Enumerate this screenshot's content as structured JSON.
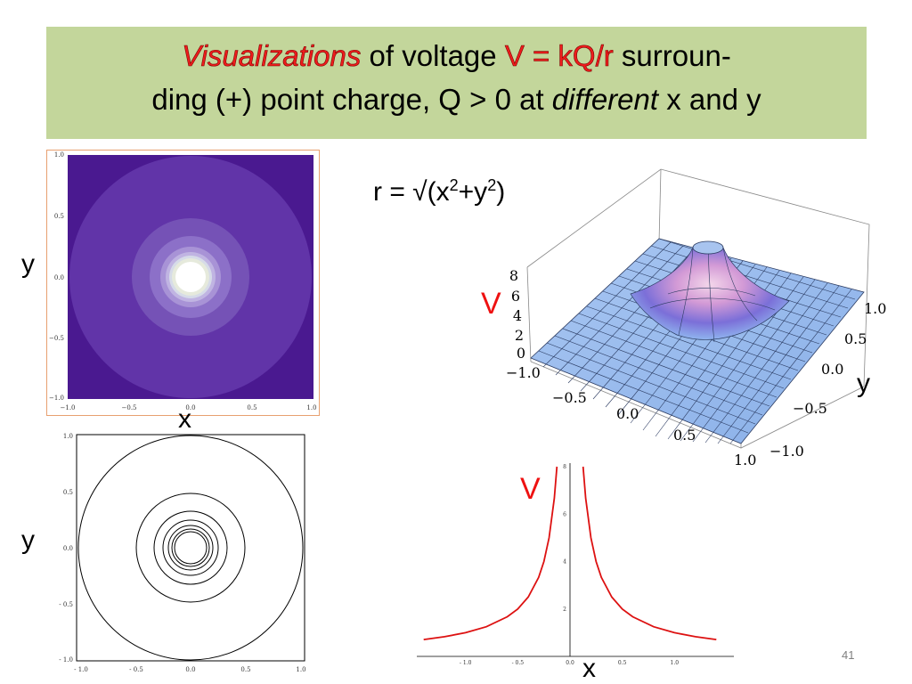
{
  "title": {
    "line1_red_italic": "Visualizations",
    "line1_text_a": " of voltage ",
    "line1_red": "V = kQ/r",
    "line1_text_b": " surroun-",
    "line2_text_a": "ding (+) point charge, Q > 0 at ",
    "line2_italic": "different",
    "line2_text_b": " x and y"
  },
  "formula": {
    "prefix": "r = √(x",
    "exp1": "2",
    "mid": "+y",
    "exp2": "2",
    "suffix": ")"
  },
  "labels": {
    "y_top": "y",
    "x_top": "x",
    "y_bottom": "y",
    "v_3d": "V",
    "y_3d": "y",
    "v_bottom": "V",
    "x_bottom": "x"
  },
  "slide_number": "41",
  "colors": {
    "banner": "#c3d69b",
    "title_red": "#ee1c1c",
    "curve": "#dd1111",
    "plot_bg": "#4a1990"
  },
  "density_plot": {
    "x_ticks": [
      "−1.0",
      "−0.5",
      "0.0",
      "0.5",
      "1.0"
    ],
    "y_ticks": [
      "1.0",
      "0.5",
      "0.0",
      "−0.5",
      "−1.0"
    ]
  },
  "contour_plot": {
    "x_ticks": [
      "- 1.0",
      "- 0.5",
      "0.0",
      "0.5",
      "1.0"
    ],
    "y_ticks": [
      "1.0",
      "0.5",
      "0.0",
      "- 0.5",
      "- 1.0"
    ]
  },
  "surface_plot": {
    "z_ticks": [
      "8",
      "6",
      "4",
      "2",
      "0"
    ],
    "x_ticks": [
      "−1.0",
      "−0.5",
      "0.0",
      "0.5",
      "1.0"
    ],
    "y_ticks": [
      "1.0",
      "0.5",
      "0.0",
      "−0.5",
      "−1.0"
    ]
  },
  "chart_data": {
    "type": "line",
    "xlim": [
      -1.5,
      1.5
    ],
    "ylim": [
      0,
      8
    ],
    "x_ticks": [
      "- 1.0",
      "- 0.5",
      "0.0",
      "0.5",
      "1.0"
    ],
    "y_ticks": [
      "2",
      "4",
      "6",
      "8"
    ],
    "x": [
      -1.4,
      -1.2,
      -1.0,
      -0.8,
      -0.6,
      -0.5,
      -0.4,
      -0.3,
      -0.25,
      -0.2,
      -0.15,
      -0.125,
      0.125,
      0.15,
      0.2,
      0.25,
      0.3,
      0.4,
      0.5,
      0.6,
      0.8,
      1.0,
      1.2,
      1.4
    ],
    "y": [
      0.71,
      0.83,
      1.0,
      1.25,
      1.67,
      2.0,
      2.5,
      3.33,
      4.0,
      5.0,
      6.67,
      8.0,
      8.0,
      6.67,
      5.0,
      4.0,
      3.33,
      2.5,
      2.0,
      1.67,
      1.25,
      1.0,
      0.83,
      0.71
    ]
  }
}
